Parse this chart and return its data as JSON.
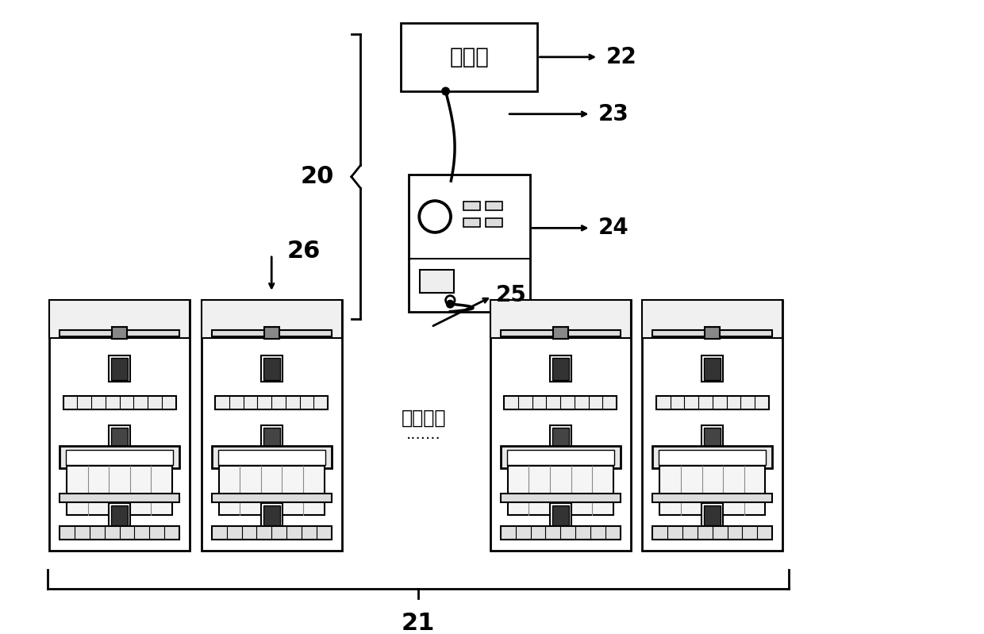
{
  "bg_color": "#ffffff",
  "line_color": "#000000",
  "dark_color": "#1a1a1a",
  "gray_color": "#888888",
  "light_gray": "#cccccc",
  "labels": {
    "host_computer": "上位机",
    "multiple_array": "多个阵元",
    "num_20": "20",
    "num_21": "21",
    "num_22": "22",
    "num_23": "23",
    "num_24": "24",
    "num_25": "25",
    "num_26": "26"
  },
  "fig_width": 12.4,
  "fig_height": 7.99
}
